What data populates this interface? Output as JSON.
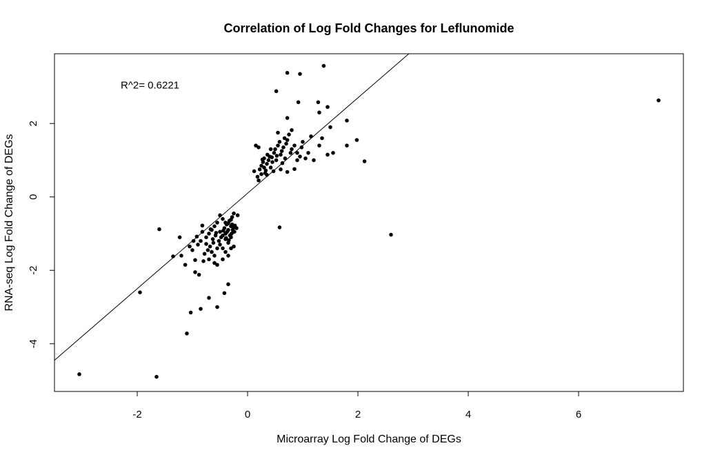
{
  "chart_data": {
    "type": "scatter",
    "title": "Correlation of Log Fold Changes for Leflunomide",
    "xlabel": "Microarray Log Fold Change of DEGs",
    "ylabel": "RNA-seq Log Fold Change of DEGs",
    "xlim": [
      -3.5,
      7.9
    ],
    "ylim": [
      -5.3,
      3.9
    ],
    "xticks": [
      -2,
      0,
      2,
      4,
      6
    ],
    "yticks": [
      -4,
      -2,
      0,
      2
    ],
    "grid": false,
    "annotation": {
      "text": "R^2=  0.6221",
      "x": -2.3,
      "y": 2.95
    },
    "fit_line": {
      "slope": 1.3,
      "intercept": 0.1
    },
    "point_color": "#000000",
    "points": [
      [
        7.45,
        2.63
      ],
      [
        2.6,
        -1.03
      ],
      [
        -3.05,
        -4.83
      ],
      [
        -1.65,
        -4.9
      ],
      [
        -1.95,
        -2.6
      ],
      [
        -1.6,
        -0.88
      ],
      [
        -1.1,
        -3.72
      ],
      [
        -1.03,
        -3.15
      ],
      [
        -0.85,
        -3.05
      ],
      [
        -0.55,
        -3.0
      ],
      [
        -0.7,
        -2.75
      ],
      [
        -0.42,
        -2.62
      ],
      [
        -0.35,
        -2.38
      ],
      [
        -0.95,
        -2.05
      ],
      [
        -0.88,
        -2.12
      ],
      [
        -1.35,
        -1.62
      ],
      [
        -1.2,
        -1.6
      ],
      [
        -1.23,
        -1.1
      ],
      [
        -1.13,
        -1.85
      ],
      [
        -0.95,
        -1.72
      ],
      [
        -0.8,
        -1.75
      ],
      [
        -0.7,
        -1.7
      ],
      [
        -0.6,
        -1.8
      ],
      [
        -0.55,
        -1.85
      ],
      [
        -0.45,
        -1.7
      ],
      [
        -0.35,
        -1.6
      ],
      [
        -0.3,
        -1.4
      ],
      [
        -0.25,
        -1.35
      ],
      [
        -1.0,
        -1.45
      ],
      [
        -0.9,
        -1.3
      ],
      [
        -0.85,
        -1.2
      ],
      [
        -0.75,
        -1.1
      ],
      [
        -0.7,
        -1.0
      ],
      [
        -0.65,
        -0.9
      ],
      [
        -0.6,
        -0.8
      ],
      [
        -0.55,
        -0.7
      ],
      [
        -0.5,
        -0.95
      ],
      [
        -0.45,
        -1.05
      ],
      [
        -0.4,
        -1.15
      ],
      [
        -0.35,
        -1.25
      ],
      [
        -0.3,
        -1.1
      ],
      [
        -0.25,
        -0.95
      ],
      [
        -0.2,
        -0.85
      ],
      [
        -0.5,
        -1.3
      ],
      [
        -0.45,
        -1.4
      ],
      [
        -0.4,
        -1.5
      ],
      [
        -0.38,
        -0.75
      ],
      [
        -0.33,
        -0.65
      ],
      [
        -0.28,
        -0.55
      ],
      [
        -0.25,
        -0.45
      ],
      [
        -0.3,
        -0.8
      ],
      [
        -0.35,
        -0.9
      ],
      [
        -0.4,
        -1.0
      ],
      [
        -0.42,
        -0.85
      ],
      [
        -0.37,
        -0.95
      ],
      [
        -0.32,
        -1.05
      ],
      [
        -0.27,
        -0.9
      ],
      [
        -0.23,
        -0.78
      ],
      [
        -0.48,
        -1.1
      ],
      [
        -0.52,
        -1.2
      ],
      [
        -0.58,
        -1.05
      ],
      [
        -0.62,
        -1.25
      ],
      [
        -0.68,
        -1.35
      ],
      [
        -0.72,
        -1.45
      ],
      [
        -0.78,
        -1.55
      ],
      [
        -0.55,
        -1.4
      ],
      [
        -0.45,
        -0.6
      ],
      [
        -0.4,
        -0.7
      ],
      [
        -0.35,
        -0.72
      ],
      [
        -0.3,
        -0.62
      ],
      [
        -0.28,
        -0.75
      ],
      [
        -0.26,
        -0.85
      ],
      [
        -0.24,
        -0.95
      ],
      [
        -0.44,
        -0.92
      ],
      [
        -0.39,
        -1.12
      ],
      [
        -0.34,
        -1.18
      ],
      [
        -0.29,
        -1.0
      ],
      [
        -0.57,
        -0.98
      ],
      [
        -0.63,
        -1.15
      ],
      [
        -0.67,
        -0.88
      ],
      [
        -0.82,
        -0.95
      ],
      [
        -0.92,
        -1.08
      ],
      [
        -0.98,
        -1.2
      ],
      [
        -0.75,
        -1.28
      ],
      [
        -0.65,
        -1.5
      ],
      [
        -0.18,
        -0.5
      ],
      [
        -0.5,
        -0.5
      ],
      [
        -0.82,
        -0.78
      ],
      [
        -1.05,
        -1.35
      ],
      [
        -0.6,
        -1.6
      ],
      [
        0.12,
        0.7
      ],
      [
        0.15,
        1.4
      ],
      [
        0.18,
        0.55
      ],
      [
        0.2,
        0.45
      ],
      [
        0.22,
        0.75
      ],
      [
        0.25,
        0.85
      ],
      [
        0.28,
        0.95
      ],
      [
        0.3,
        1.05
      ],
      [
        0.32,
        0.65
      ],
      [
        0.35,
        0.9
      ],
      [
        0.38,
        1.0
      ],
      [
        0.4,
        1.1
      ],
      [
        0.42,
        0.8
      ],
      [
        0.45,
        0.95
      ],
      [
        0.48,
        1.2
      ],
      [
        0.5,
        1.3
      ],
      [
        0.52,
        1.0
      ],
      [
        0.55,
        1.4
      ],
      [
        0.58,
        1.5
      ],
      [
        0.6,
        1.15
      ],
      [
        0.62,
        1.25
      ],
      [
        0.65,
        1.35
      ],
      [
        0.68,
        1.05
      ],
      [
        0.7,
        1.45
      ],
      [
        0.72,
        1.55
      ],
      [
        0.75,
        1.7
      ],
      [
        0.78,
        1.2
      ],
      [
        0.8,
        1.3
      ],
      [
        0.85,
        1.4
      ],
      [
        0.9,
        1.0
      ],
      [
        0.95,
        1.1
      ],
      [
        1.0,
        1.5
      ],
      [
        1.05,
        1.05
      ],
      [
        1.1,
        1.2
      ],
      [
        1.15,
        1.65
      ],
      [
        1.2,
        1.0
      ],
      [
        1.3,
        1.4
      ],
      [
        1.35,
        1.6
      ],
      [
        1.45,
        1.15
      ],
      [
        1.5,
        1.9
      ],
      [
        1.55,
        1.2
      ],
      [
        1.8,
        1.4
      ],
      [
        1.98,
        1.55
      ],
      [
        2.12,
        0.97
      ],
      [
        1.8,
        2.08
      ],
      [
        1.45,
        2.45
      ],
      [
        1.28,
        2.58
      ],
      [
        1.3,
        2.3
      ],
      [
        0.92,
        2.58
      ],
      [
        0.52,
        2.88
      ],
      [
        0.72,
        3.38
      ],
      [
        0.95,
        3.35
      ],
      [
        1.38,
        3.57
      ],
      [
        0.72,
        2.15
      ],
      [
        0.9,
        1.2
      ],
      [
        0.6,
        0.75
      ],
      [
        0.72,
        0.68
      ],
      [
        0.58,
        -0.83
      ],
      [
        0.35,
        0.6
      ],
      [
        0.25,
        0.62
      ],
      [
        0.33,
        0.72
      ],
      [
        0.44,
        1.08
      ],
      [
        0.53,
        1.12
      ],
      [
        0.63,
        0.92
      ],
      [
        0.85,
        0.76
      ],
      [
        0.98,
        1.35
      ],
      [
        0.67,
        1.6
      ],
      [
        0.8,
        1.82
      ],
      [
        0.55,
        1.75
      ],
      [
        0.42,
        1.3
      ],
      [
        0.27,
        1.02
      ],
      [
        0.3,
        0.8
      ],
      [
        0.2,
        1.35
      ],
      [
        0.36,
        1.15
      ],
      [
        0.47,
        0.7
      ]
    ]
  }
}
